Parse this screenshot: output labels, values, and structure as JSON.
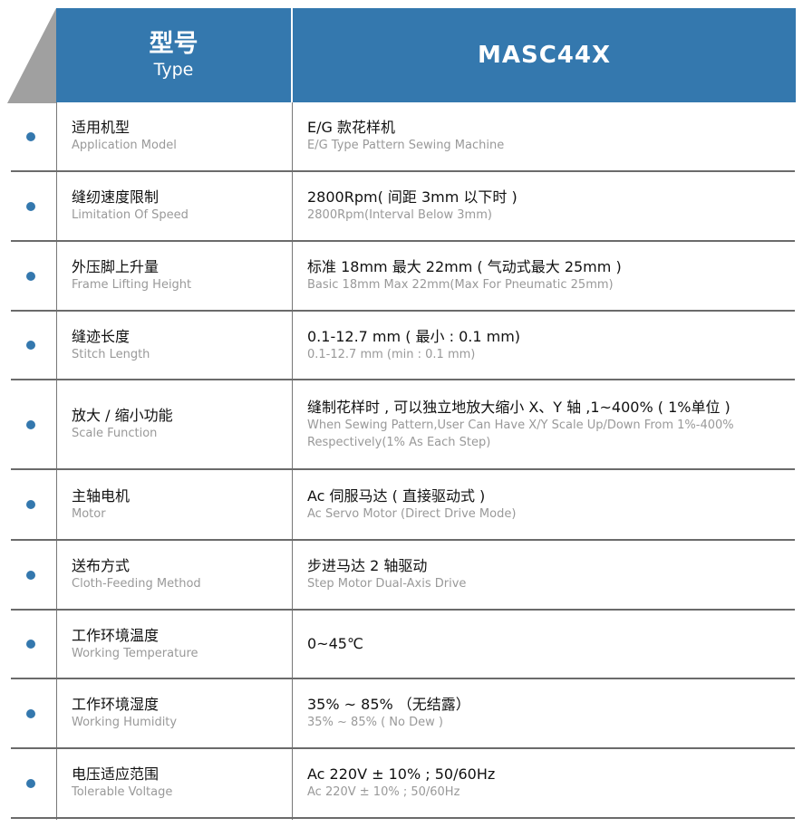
{
  "header": {
    "type_zh": "型号",
    "type_en": "Type",
    "model": "MASC44X"
  },
  "accent_color": "#3478ae",
  "rows": [
    {
      "label_zh": "适用机型",
      "label_en": "Application Model",
      "value_zh": "E/G 款花样机",
      "value_en": "E/G Type Pattern Sewing Machine"
    },
    {
      "label_zh": "缝纫速度限制",
      "label_en": "Limitation Of Speed",
      "value_zh": "2800Rpm( 间距 3mm 以下时 )",
      "value_en": "2800Rpm(Interval Below 3mm)"
    },
    {
      "label_zh": "外压脚上升量",
      "label_en": "Frame Lifting Height",
      "value_zh": "标准 18mm 最大 22mm ( 气动式最大 25mm )",
      "value_en": "Basic 18mm Max 22mm(Max For Pneumatic 25mm)"
    },
    {
      "label_zh": "缝迹长度",
      "label_en": "Stitch Length",
      "value_zh": "0.1-12.7 mm ( 最小 : 0.1 mm)",
      "value_en": "0.1-12.7 mm (min : 0.1 mm)"
    },
    {
      "label_zh": "放大 / 缩小功能",
      "label_en": "Scale Function",
      "value_zh": "缝制花样时 , 可以独立地放大缩小 X、Y 轴 ,1~400% ( 1%单位 )",
      "value_en": "When Sewing Pattern,User Can Have X/Y Scale Up/Down From 1%-400% Respectively(1% As Each Step)"
    },
    {
      "label_zh": "主轴电机",
      "label_en": "Motor",
      "value_zh": "Ac 伺服马达 ( 直接驱动式 )",
      "value_en": "Ac Servo Motor (Direct Drive Mode)"
    },
    {
      "label_zh": "送布方式",
      "label_en": "Cloth-Feeding Method",
      "value_zh": "步进马达 2 轴驱动",
      "value_en": "Step Motor Dual-Axis Drive"
    },
    {
      "label_zh": "工作环境温度",
      "label_en": "Working Temperature",
      "value_zh": "0~45℃",
      "value_en": ""
    },
    {
      "label_zh": "工作环境湿度",
      "label_en": "Working Humidity",
      "value_zh": "35% ~ 85% （无结露）",
      "value_en": "35% ~ 85% ( No Dew )"
    },
    {
      "label_zh": "电压适应范围",
      "label_en": "Tolerable Voltage",
      "value_zh": "Ac 220V ± 10% ; 50/60Hz",
      "value_en": "Ac 220V ± 10% ; 50/60Hz"
    }
  ]
}
